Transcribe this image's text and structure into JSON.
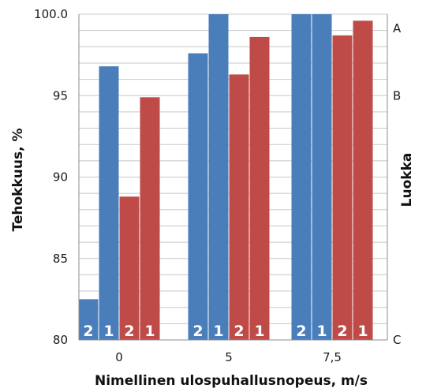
{
  "chart_data": {
    "type": "bar",
    "xlabel": "Nimellinen ulospuhallusnopeus, m/s",
    "ylabel": "Tehokkuus,  %",
    "y2label": "Luokka",
    "categories": [
      "0",
      "5",
      "7,5"
    ],
    "ylim": [
      80,
      100
    ],
    "y_ticks": [
      80,
      85,
      90,
      95,
      100
    ],
    "y_tick_labels": [
      "80",
      "85",
      "90",
      "95",
      "100.0"
    ],
    "y2_ticks": [
      {
        "value": 100,
        "label": "A"
      },
      {
        "value": 95,
        "label": "B"
      },
      {
        "value": 80,
        "label": "C"
      }
    ],
    "grid": true,
    "bars": [
      {
        "category": "0",
        "label": "2",
        "value": 82.5,
        "color": "#4a7ebb"
      },
      {
        "category": "0",
        "label": "1",
        "value": 96.8,
        "color": "#4a7ebb"
      },
      {
        "category": "0",
        "label": "2",
        "value": 88.8,
        "color": "#be4b48"
      },
      {
        "category": "0",
        "label": "1",
        "value": 94.9,
        "color": "#be4b48"
      },
      {
        "category": "5",
        "label": "2",
        "value": 97.6,
        "color": "#4a7ebb"
      },
      {
        "category": "5",
        "label": "1",
        "value": 100.0,
        "color": "#4a7ebb"
      },
      {
        "category": "5",
        "label": "2",
        "value": 96.3,
        "color": "#be4b48"
      },
      {
        "category": "5",
        "label": "1",
        "value": 98.6,
        "color": "#be4b48"
      },
      {
        "category": "7,5",
        "label": "2",
        "value": 100.0,
        "color": "#4a7ebb"
      },
      {
        "category": "7,5",
        "label": "1",
        "value": 100.0,
        "color": "#4a7ebb"
      },
      {
        "category": "7,5",
        "label": "2",
        "value": 98.7,
        "color": "#be4b48"
      },
      {
        "category": "7,5",
        "label": "1",
        "value": 99.6,
        "color": "#be4b48"
      }
    ]
  }
}
